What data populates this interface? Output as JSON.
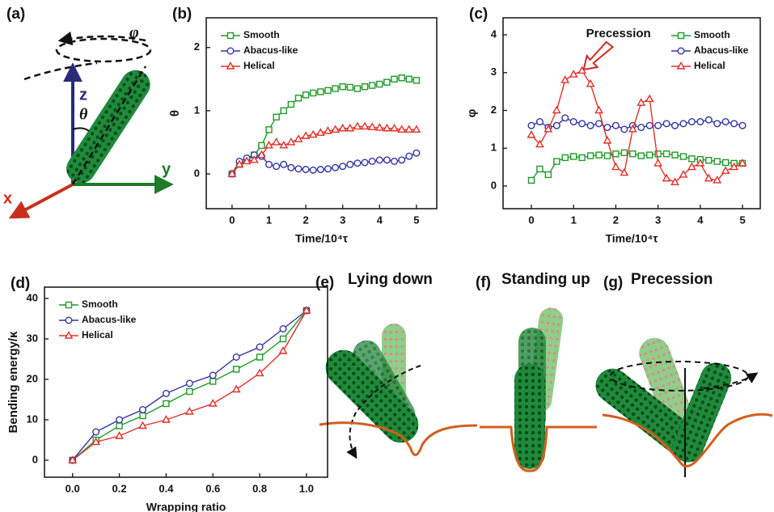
{
  "panels": [
    {
      "label": "(a)",
      "texts": [
        "z",
        "y",
        "x",
        "θ",
        "φ"
      ]
    },
    {
      "label": "(e)",
      "caption": "Lying down"
    },
    {
      "label": "(f)",
      "caption": "Standing up"
    },
    {
      "label": "(g)",
      "caption": "Precession"
    }
  ],
  "chart_data": [
    {
      "type": "line",
      "panel_label": "(b)",
      "xlabel": "Time/10⁴τ",
      "ylabel": "θ",
      "xlim": [
        -0.7,
        5.55
      ],
      "xticks": [
        0,
        1,
        2,
        3,
        4,
        5
      ],
      "ylim": [
        -0.55,
        2.47
      ],
      "yticks": [
        0,
        1,
        2
      ],
      "grid": false,
      "legend": "upper left",
      "x": [
        0,
        0.2,
        0.4,
        0.6,
        0.8,
        1.0,
        1.2,
        1.4,
        1.6,
        1.8,
        2.0,
        2.2,
        2.4,
        2.6,
        2.8,
        3.0,
        3.2,
        3.4,
        3.6,
        3.8,
        4.0,
        4.2,
        4.4,
        4.6,
        4.8,
        5.0
      ],
      "series": [
        {
          "name": "Smooth",
          "color": "#1f9a2a",
          "marker": "square",
          "values": [
            0,
            0.15,
            0.22,
            0.3,
            0.45,
            0.7,
            0.9,
            1.0,
            1.1,
            1.2,
            1.25,
            1.28,
            1.3,
            1.32,
            1.35,
            1.38,
            1.37,
            1.35,
            1.38,
            1.4,
            1.42,
            1.45,
            1.5,
            1.52,
            1.5,
            1.48
          ]
        },
        {
          "name": "Abacus-like",
          "color": "#3434a4",
          "marker": "circle",
          "values": [
            0,
            0.2,
            0.25,
            0.3,
            0.28,
            0.15,
            0.12,
            0.15,
            0.1,
            0.08,
            0.07,
            0.06,
            0.07,
            0.08,
            0.1,
            0.12,
            0.15,
            0.17,
            0.18,
            0.2,
            0.22,
            0.22,
            0.2,
            0.22,
            0.28,
            0.33
          ]
        },
        {
          "name": "Helical",
          "color": "#e2302a",
          "marker": "triangle",
          "values": [
            0,
            0.15,
            0.2,
            0.22,
            0.3,
            0.45,
            0.5,
            0.45,
            0.5,
            0.55,
            0.6,
            0.62,
            0.65,
            0.68,
            0.7,
            0.72,
            0.72,
            0.75,
            0.75,
            0.74,
            0.73,
            0.72,
            0.72,
            0.7,
            0.7,
            0.7
          ]
        }
      ]
    },
    {
      "type": "line",
      "panel_label": "(c)",
      "xlabel": "Time/10⁴τ",
      "ylabel": "φ",
      "annotation": "Precession",
      "xlim": [
        -0.67,
        5.42
      ],
      "xticks": [
        0,
        1,
        2,
        3,
        4,
        5
      ],
      "ylim": [
        -0.6,
        4.45
      ],
      "yticks": [
        0,
        1,
        2,
        3,
        4
      ],
      "grid": false,
      "legend": "upper right",
      "x": [
        0,
        0.2,
        0.4,
        0.6,
        0.8,
        1.0,
        1.2,
        1.4,
        1.6,
        1.8,
        2.0,
        2.2,
        2.4,
        2.6,
        2.8,
        3.0,
        3.2,
        3.4,
        3.6,
        3.8,
        4.0,
        4.2,
        4.4,
        4.6,
        4.8,
        5.0
      ],
      "series": [
        {
          "name": "Smooth",
          "color": "#1f9a2a",
          "marker": "square",
          "values": [
            0.15,
            0.45,
            0.3,
            0.65,
            0.75,
            0.78,
            0.75,
            0.8,
            0.82,
            0.8,
            0.85,
            0.88,
            0.85,
            0.8,
            0.82,
            0.85,
            0.85,
            0.82,
            0.78,
            0.72,
            0.7,
            0.68,
            0.65,
            0.62,
            0.6,
            0.6
          ]
        },
        {
          "name": "Abacus-like",
          "color": "#3434a4",
          "marker": "circle",
          "values": [
            1.6,
            1.7,
            1.55,
            1.6,
            1.8,
            1.7,
            1.65,
            1.6,
            1.65,
            1.55,
            1.6,
            1.5,
            1.6,
            1.55,
            1.6,
            1.6,
            1.65,
            1.6,
            1.65,
            1.7,
            1.7,
            1.75,
            1.65,
            1.7,
            1.65,
            1.6
          ]
        },
        {
          "name": "Helical",
          "color": "#e2302a",
          "marker": "triangle",
          "values": [
            1.35,
            1.1,
            1.5,
            2.0,
            2.8,
            2.95,
            3.05,
            2.7,
            2.0,
            1.2,
            0.5,
            0.35,
            1.5,
            2.2,
            2.3,
            0.6,
            0.2,
            0.1,
            0.3,
            0.5,
            0.6,
            0.2,
            0.15,
            0.4,
            0.5,
            0.6
          ]
        }
      ]
    },
    {
      "type": "line",
      "panel_label": "(d)",
      "xlabel": "Wrapping ratio",
      "ylabel": "Bending energy/κ",
      "xlim": [
        -0.12,
        1.09
      ],
      "xticks": [
        {
          "value": 0,
          "label": "0.0"
        },
        {
          "value": 0.2,
          "label": "0.2"
        },
        {
          "value": 0.4,
          "label": "0.4"
        },
        {
          "value": 0.6,
          "label": "0.6"
        },
        {
          "value": 0.8,
          "label": "0.8"
        },
        {
          "value": 1,
          "label": "1.0"
        }
      ],
      "ylim": [
        -4.2,
        42.8
      ],
      "yticks": [
        0,
        10,
        20,
        30,
        40
      ],
      "grid": false,
      "legend": "upper left",
      "x": [
        0,
        0.1,
        0.2,
        0.3,
        0.4,
        0.5,
        0.6,
        0.7,
        0.8,
        0.9,
        1.0
      ],
      "series": [
        {
          "name": "Smooth",
          "color": "#1f9a2a",
          "marker": "square",
          "values": [
            0,
            5,
            8.5,
            11,
            14,
            17,
            19.5,
            22.5,
            25.5,
            30,
            37
          ]
        },
        {
          "name": "Abacus-like",
          "color": "#3434a4",
          "marker": "circle",
          "values": [
            0,
            7,
            10,
            12.5,
            16.5,
            19,
            21,
            25.5,
            28,
            32.5,
            37
          ]
        },
        {
          "name": "Helical",
          "color": "#e2302a",
          "marker": "triangle",
          "values": [
            0,
            4.5,
            6,
            8.5,
            10,
            12,
            14,
            17.5,
            21.5,
            27,
            37
          ]
        }
      ]
    }
  ]
}
